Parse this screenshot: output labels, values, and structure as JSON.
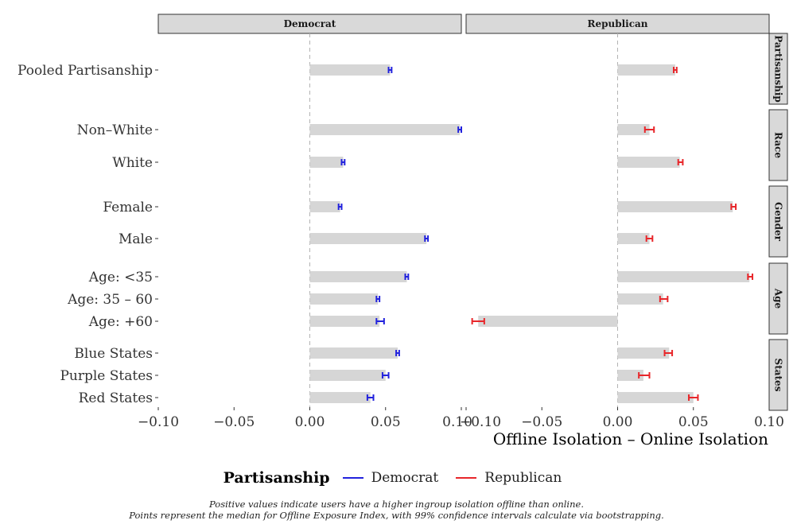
{
  "chart_data": {
    "type": "bar",
    "xlabel": "Offline Isolation – Online Isolation",
    "xlim": [
      -0.1,
      0.1
    ],
    "xticks": [
      "−0.10",
      "−0.05",
      "0.00",
      "0.05",
      "0.10"
    ],
    "xtick_values": [
      -0.1,
      -0.05,
      0.0,
      0.05,
      0.1
    ],
    "reference_line": 0.0,
    "panels": [
      {
        "name": "Democrat",
        "color": "#2222dd"
      },
      {
        "name": "Republican",
        "color": "#e8262a"
      }
    ],
    "row_groups": [
      "Partisanship",
      "Race",
      "Gender",
      "Age",
      "States"
    ],
    "categories": [
      {
        "label": "Pooled Partisanship",
        "group": "Partisanship"
      },
      {
        "label": "Non–White",
        "group": "Race"
      },
      {
        "label": "White",
        "group": "Race"
      },
      {
        "label": "Female",
        "group": "Gender"
      },
      {
        "label": "Male",
        "group": "Gender"
      },
      {
        "label": "Age: <35",
        "group": "Age"
      },
      {
        "label": "Age: 35 – 60",
        "group": "Age"
      },
      {
        "label": "Age: +60",
        "group": "Age"
      },
      {
        "label": "Blue States",
        "group": "States"
      },
      {
        "label": "Purple States",
        "group": "States"
      },
      {
        "label": "Red States",
        "group": "States"
      }
    ],
    "series": [
      {
        "name": "Democrat",
        "values": [
          0.053,
          0.099,
          0.022,
          0.02,
          0.077,
          0.064,
          0.045,
          0.046,
          0.058,
          0.05,
          0.04
        ],
        "ci_low": [
          0.052,
          0.098,
          0.021,
          0.019,
          0.076,
          0.063,
          0.044,
          0.044,
          0.057,
          0.048,
          0.038
        ],
        "ci_high": [
          0.054,
          0.1,
          0.023,
          0.021,
          0.078,
          0.065,
          0.046,
          0.049,
          0.059,
          0.052,
          0.042
        ]
      },
      {
        "name": "Republican",
        "values": [
          0.038,
          0.021,
          0.041,
          0.076,
          0.021,
          0.087,
          0.03,
          -0.092,
          0.034,
          0.017,
          0.05
        ],
        "ci_low": [
          0.037,
          0.018,
          0.04,
          0.075,
          0.019,
          0.086,
          0.028,
          -0.096,
          0.031,
          0.014,
          0.047
        ],
        "ci_high": [
          0.039,
          0.024,
          0.043,
          0.078,
          0.023,
          0.089,
          0.033,
          -0.088,
          0.036,
          0.021,
          0.053
        ]
      }
    ],
    "legend": {
      "title": "Partisanship",
      "position": "bottom",
      "entries": [
        {
          "label": "Democrat",
          "color": "#2222dd"
        },
        {
          "label": "Republican",
          "color": "#e8262a"
        }
      ]
    },
    "grid": false
  },
  "caption": {
    "line1": "Positive values indicate users have a higher ingroup isolation offline than online.",
    "line2": "Points represent the median for Offline Exposure Index, with 99% confidence intervals calculate via bootstrapping."
  }
}
